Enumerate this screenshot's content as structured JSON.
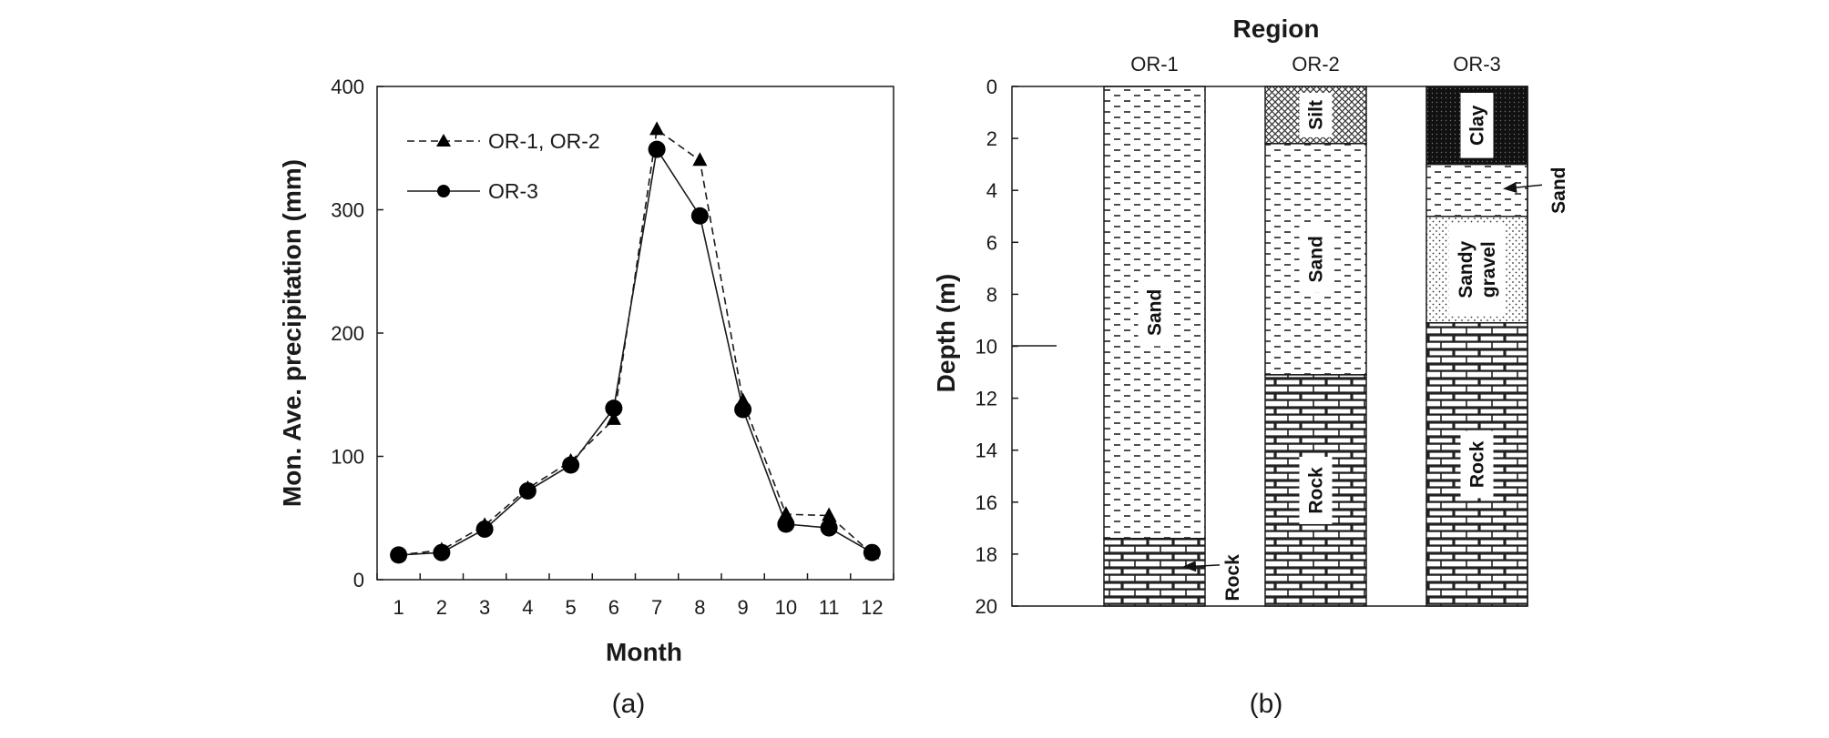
{
  "colors": {
    "ink": "#1a1a1a",
    "background": "#ffffff"
  },
  "chart_data": [
    {
      "type": "line",
      "panel": "(a)",
      "xlabel": "Month",
      "ylabel": "Mon. Ave. precipitation (mm)",
      "x": [
        1,
        2,
        3,
        4,
        5,
        6,
        7,
        8,
        9,
        10,
        11,
        12
      ],
      "ylim": [
        0,
        400
      ],
      "yticks": [
        0,
        100,
        200,
        300,
        400
      ],
      "legend_position": "top-left",
      "series": [
        {
          "name": "OR-1, OR-2",
          "marker": "triangle",
          "line": "dashed",
          "values": [
            20,
            24,
            44,
            74,
            96,
            130,
            365,
            340,
            145,
            53,
            52,
            21
          ]
        },
        {
          "name": "OR-3",
          "marker": "circle",
          "line": "solid",
          "values": [
            20,
            22,
            41,
            72,
            93,
            139,
            349,
            295,
            138,
            45,
            42,
            22
          ]
        }
      ]
    },
    {
      "type": "stratigraphic-column",
      "panel": "(b)",
      "title": "Region",
      "ylabel": "Depth (m)",
      "ylim": [
        0,
        20
      ],
      "yticks": [
        0,
        2,
        4,
        6,
        8,
        10,
        12,
        14,
        16,
        18,
        20
      ],
      "columns": [
        {
          "name": "OR-1",
          "layers": [
            {
              "label": "Sand",
              "top": 0,
              "bottom": 17.4,
              "pattern": "sand"
            },
            {
              "label": "Rock",
              "top": 17.4,
              "bottom": 20,
              "pattern": "rock",
              "callout": true
            }
          ]
        },
        {
          "name": "OR-2",
          "layers": [
            {
              "label": "Silt",
              "top": 0,
              "bottom": 2.2,
              "pattern": "silt"
            },
            {
              "label": "Sand",
              "top": 2.2,
              "bottom": 11.1,
              "pattern": "sand"
            },
            {
              "label": "Rock",
              "top": 11.1,
              "bottom": 20,
              "pattern": "rock"
            }
          ]
        },
        {
          "name": "OR-3",
          "layers": [
            {
              "label": "Clay",
              "top": 0,
              "bottom": 3.0,
              "pattern": "clay"
            },
            {
              "label": "Sand",
              "top": 3.0,
              "bottom": 5.0,
              "pattern": "sand",
              "callout": true
            },
            {
              "label": "Sandy gravel",
              "top": 5.0,
              "bottom": 9.1,
              "pattern": "gravel"
            },
            {
              "label": "Rock",
              "top": 9.1,
              "bottom": 20,
              "pattern": "rock"
            }
          ]
        }
      ]
    }
  ]
}
